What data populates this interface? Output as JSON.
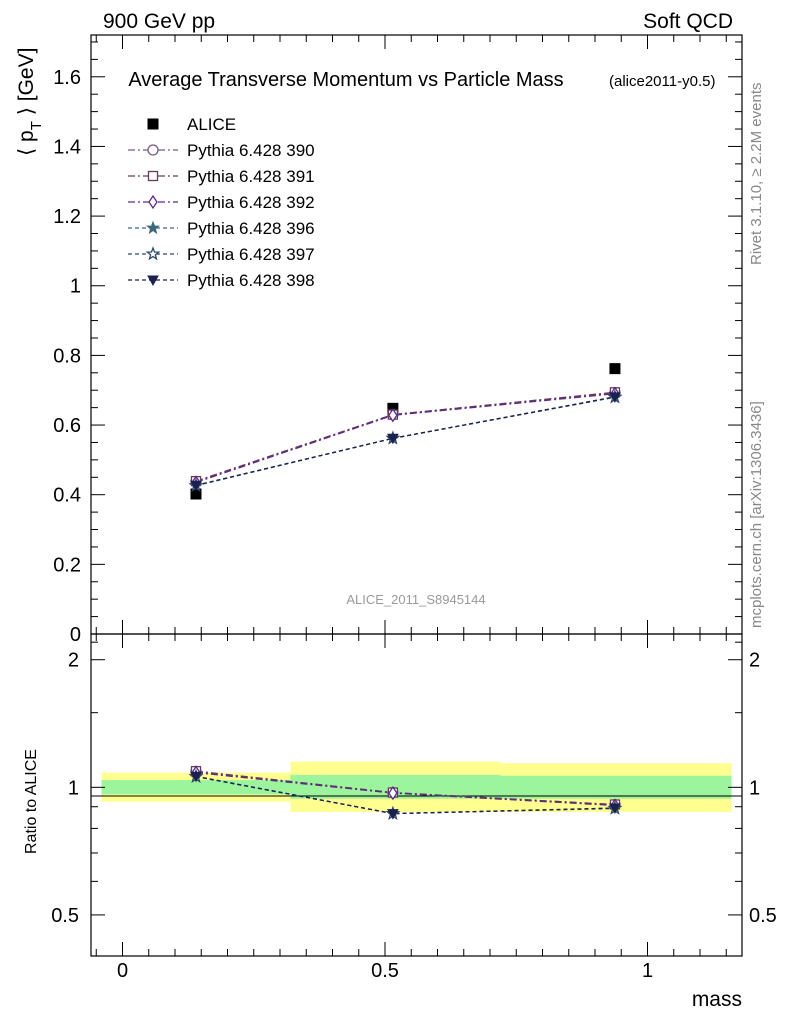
{
  "header": {
    "left": "900 GeV pp",
    "right": "Soft QCD",
    "title": "Average Transverse Momentum vs Particle Mass",
    "subtitle": "(alice2011-y0.5)",
    "watermark": "ALICE_2011_S8945144"
  },
  "side_text": {
    "rivet": "Rivet 3.1.10, ≥ 2.2M events",
    "mcplots": "mcplots.cern.ch [arXiv:1306.3436]"
  },
  "chart_data": {
    "type": "scatter",
    "title": "Average Transverse Momentum vs Particle Mass",
    "xlabel": "mass",
    "ylabel": "⟨ p_T ⟩ [GeV]",
    "ratio_ylabel": "Ratio to ALICE",
    "xlim": [
      -0.06,
      1.18
    ],
    "ylim": [
      0,
      1.72
    ],
    "ratio_ylim": [
      0.4,
      2.3
    ],
    "x_ticks": [
      "0",
      "0.5",
      "1"
    ],
    "y_ticks": [
      "0",
      "0.2",
      "0.4",
      "0.6",
      "0.8",
      "1",
      "1.2",
      "1.4",
      "1.6"
    ],
    "ratio_ticks": [
      "0.5",
      "1",
      "2"
    ],
    "x": [
      0.14,
      0.515,
      0.938
    ],
    "data": {
      "name": "ALICE",
      "values": [
        0.402,
        0.648,
        0.762
      ]
    },
    "bands": [
      {
        "x0": -0.04,
        "x1": 0.32,
        "inner": [
          0.962,
          1.04
        ],
        "outer": [
          0.925,
          1.083
        ]
      },
      {
        "x0": 0.32,
        "x1": 0.72,
        "inner": [
          0.94,
          1.07
        ],
        "outer": [
          0.875,
          1.15
        ]
      },
      {
        "x0": 0.72,
        "x1": 1.16,
        "inner": [
          0.94,
          1.065
        ],
        "outer": [
          0.875,
          1.14
        ]
      }
    ],
    "series": [
      {
        "name": "Pythia 6.428 390",
        "color": "#7a5a8a",
        "dash": "7,3,2,3",
        "marker": "circle-open",
        "values": [
          0.438,
          0.63,
          0.693
        ],
        "ratio": [
          1.09,
          0.972,
          0.91
        ]
      },
      {
        "name": "Pythia 6.428 391",
        "color": "#6a3a5a",
        "dash": "7,3,2,3",
        "marker": "square-open",
        "values": [
          0.439,
          0.63,
          0.694
        ],
        "ratio": [
          1.092,
          0.972,
          0.911
        ]
      },
      {
        "name": "Pythia 6.428 392",
        "color": "#5a2a8a",
        "dash": "7,3,2,3",
        "marker": "diamond-open",
        "values": [
          0.435,
          0.628,
          0.69
        ],
        "ratio": [
          1.083,
          0.969,
          0.906
        ]
      },
      {
        "name": "Pythia 6.428 396",
        "color": "#3a6a7a",
        "dash": "4,3",
        "marker": "star",
        "values": [
          0.426,
          0.562,
          0.68
        ],
        "ratio": [
          1.06,
          0.867,
          0.892
        ]
      },
      {
        "name": "Pythia 6.428 397",
        "color": "#2a4a6a",
        "dash": "4,3",
        "marker": "star-open",
        "values": [
          0.426,
          0.562,
          0.68
        ],
        "ratio": [
          1.06,
          0.867,
          0.892
        ]
      },
      {
        "name": "Pythia 6.428 398",
        "color": "#1a2050",
        "dash": "4,3",
        "marker": "triangle-down",
        "values": [
          0.427,
          0.562,
          0.681
        ],
        "ratio": [
          1.062,
          0.867,
          0.894
        ]
      }
    ],
    "legend_position": "top-left",
    "grid": false
  }
}
